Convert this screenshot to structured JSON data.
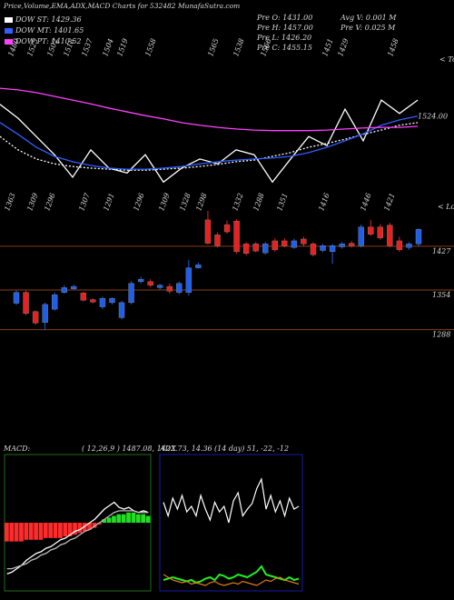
{
  "header": {
    "title": "Price,Volume,EMA,ADX,MACD Charts for 532482 MunafaSutra.com"
  },
  "quote": {
    "left": [
      "Pre O: 1431.00",
      "Pre H: 1457.00",
      "Pre L: 1426.20",
      "Pre C: 1455.15"
    ],
    "right": [
      "Avg V: 0.001 M",
      "Pre V: 0.025 M"
    ]
  },
  "chart_data": [
    {
      "type": "line",
      "annotation": "< Tops",
      "top_labels": [
        "1480",
        "1525",
        "1502",
        "1518",
        "1537",
        "1504",
        "1519",
        "1558",
        "1565",
        "1538",
        "1566",
        "1451",
        "1429",
        "1458"
      ],
      "ylim": [
        1360,
        1640
      ],
      "yticks": [
        {
          "value": 1524,
          "label": "1524.00"
        }
      ],
      "series": [
        {
          "color": "#ffffff",
          "values": [
            1547,
            1521,
            1487,
            1453,
            1411,
            1462,
            1428,
            1419,
            1453,
            1402,
            1428,
            1445,
            1436,
            1462,
            1453,
            1402,
            1445,
            1487,
            1470,
            1538,
            1479,
            1555,
            1530,
            1555
          ]
        },
        {
          "name": "DOW ST: 1429.36",
          "color": "#ffffff",
          "dashed": true,
          "values": [
            1487,
            1462,
            1445,
            1436,
            1431,
            1428,
            1426,
            1424,
            1424,
            1426,
            1428,
            1431,
            1435,
            1440,
            1443,
            1450,
            1457,
            1467,
            1474,
            1482,
            1491,
            1499,
            1508,
            1513
          ]
        },
        {
          "name": "DOW MT: 1401.65",
          "color": "#2f5fff",
          "values": [
            1513,
            1491,
            1467,
            1450,
            1440,
            1433,
            1428,
            1426,
            1426,
            1428,
            1431,
            1436,
            1440,
            1443,
            1445,
            1447,
            1450,
            1457,
            1467,
            1479,
            1492,
            1508,
            1518,
            1525
          ]
        },
        {
          "name": "DOW PT: 1410.52",
          "color": "#ff40ff",
          "values": [
            1577,
            1574,
            1569,
            1562,
            1555,
            1548,
            1540,
            1533,
            1526,
            1520,
            1513,
            1508,
            1504,
            1501,
            1499,
            1498,
            1498,
            1498,
            1499,
            1501,
            1503,
            1504,
            1504,
            1506
          ]
        }
      ]
    },
    {
      "type": "candlestick",
      "annotation": "< Lows",
      "low_labels": [
        "1363",
        "1309",
        "1296",
        "1307",
        "1291",
        "1296",
        "1309",
        "1328",
        "1298",
        "1332",
        "1288",
        "1351",
        "1416",
        "1446",
        "1421"
      ],
      "ylim": [
        1110,
        1492
      ],
      "yticks": [
        1427,
        1354,
        1288
      ],
      "grid": true,
      "grid_color": "#8b3a1a",
      "up_color": "#1f5fe8",
      "down_color": "#e82020",
      "open": [
        1332,
        1350,
        1318,
        1300,
        1322,
        1350,
        1356,
        1349,
        1338,
        1326,
        1333,
        1308,
        1333,
        1368,
        1368,
        1358,
        1360,
        1350,
        1350,
        1391,
        1471,
        1446,
        1463,
        1469,
        1431,
        1431,
        1416,
        1436,
        1436,
        1425,
        1439,
        1431,
        1420,
        1418,
        1426,
        1432,
        1428,
        1459,
        1459,
        1462,
        1436,
        1425,
        1431
      ],
      "high": [
        1353,
        1353,
        1320,
        1333,
        1350,
        1362,
        1363,
        1351,
        1340,
        1343,
        1342,
        1336,
        1369,
        1376,
        1372,
        1364,
        1365,
        1368,
        1404,
        1400,
        1486,
        1450,
        1470,
        1472,
        1434,
        1434,
        1434,
        1440,
        1440,
        1440,
        1443,
        1434,
        1431,
        1431,
        1434,
        1436,
        1463,
        1471,
        1464,
        1466,
        1443,
        1434,
        1457
      ],
      "low": [
        1329,
        1312,
        1296,
        1288,
        1320,
        1348,
        1354,
        1335,
        1332,
        1322,
        1330,
        1305,
        1330,
        1365,
        1359,
        1355,
        1348,
        1347,
        1345,
        1390,
        1430,
        1425,
        1448,
        1415,
        1412,
        1417,
        1413,
        1418,
        1425,
        1423,
        1427,
        1410,
        1417,
        1398,
        1423,
        1425,
        1425,
        1444,
        1438,
        1425,
        1418,
        1421,
        1426.2
      ],
      "close": [
        1350,
        1315,
        1299,
        1330,
        1346,
        1358,
        1360,
        1337,
        1334,
        1340,
        1340,
        1333,
        1365,
        1372,
        1362,
        1362,
        1352,
        1365,
        1391,
        1396,
        1432,
        1428,
        1451,
        1418,
        1415,
        1419,
        1431,
        1421,
        1428,
        1436,
        1431,
        1413,
        1428,
        1428,
        1431,
        1428,
        1459,
        1447,
        1441,
        1428,
        1421,
        1431,
        1455.15
      ]
    },
    {
      "type": "macd",
      "title": "MACD:",
      "subtitle": "( 12,26,9 ) 1487.08, 1422.73, 14.36",
      "ylim": [
        -40,
        40
      ],
      "positive_color": "#22dd22",
      "negative_color": "#ff2a2a",
      "histogram": [
        -11,
        -11,
        -11,
        -11,
        -10,
        -10,
        -10,
        -10,
        -9,
        -9,
        -9,
        -9,
        -8,
        -8,
        -7,
        -6,
        -5,
        -4,
        -3,
        -1,
        2,
        3,
        4,
        5,
        5,
        6,
        6,
        5,
        5,
        4
      ],
      "series": [
        {
          "color": "#ffffff",
          "values": [
            -30,
            -29,
            -27,
            -25,
            -22,
            -20,
            -18,
            -17,
            -15,
            -14,
            -12,
            -10,
            -9,
            -7,
            -5,
            -4,
            -2,
            0,
            2,
            5,
            8,
            10,
            12,
            9,
            8,
            9,
            7,
            6,
            7,
            6
          ]
        },
        {
          "color": "#bbbbbb",
          "values": [
            -27,
            -27,
            -26,
            -25,
            -24,
            -22,
            -21,
            -19,
            -18,
            -16,
            -15,
            -13,
            -12,
            -10,
            -9,
            -7,
            -5,
            -4,
            -2,
            0,
            2,
            4,
            6,
            7,
            7,
            7,
            7,
            6,
            6,
            6
          ]
        }
      ]
    },
    {
      "type": "adx",
      "title": "ADX",
      "subtitle": "(14 day) 51, -22, -12",
      "ylim": [
        0,
        100
      ],
      "series": [
        {
          "color": "#ffffff",
          "values": [
            65,
            55,
            68,
            60,
            70,
            58,
            62,
            55,
            70,
            60,
            52,
            65,
            58,
            62,
            50,
            66,
            72,
            55,
            60,
            64,
            75,
            82,
            60,
            70,
            58,
            66,
            55,
            68,
            60,
            62
          ]
        },
        {
          "color": "#22ee22",
          "values": [
            8,
            9,
            10,
            9,
            8,
            7,
            8,
            6,
            7,
            9,
            10,
            8,
            12,
            11,
            9,
            10,
            12,
            11,
            10,
            12,
            14,
            18,
            12,
            11,
            10,
            9,
            8,
            10,
            8,
            9
          ]
        },
        {
          "color": "#e07a1a",
          "values": [
            12,
            10,
            8,
            7,
            6,
            7,
            5,
            6,
            5,
            4,
            6,
            7,
            5,
            4,
            5,
            6,
            5,
            7,
            6,
            5,
            4,
            6,
            8,
            7,
            9,
            10,
            8,
            7,
            6,
            5
          ]
        }
      ]
    }
  ]
}
